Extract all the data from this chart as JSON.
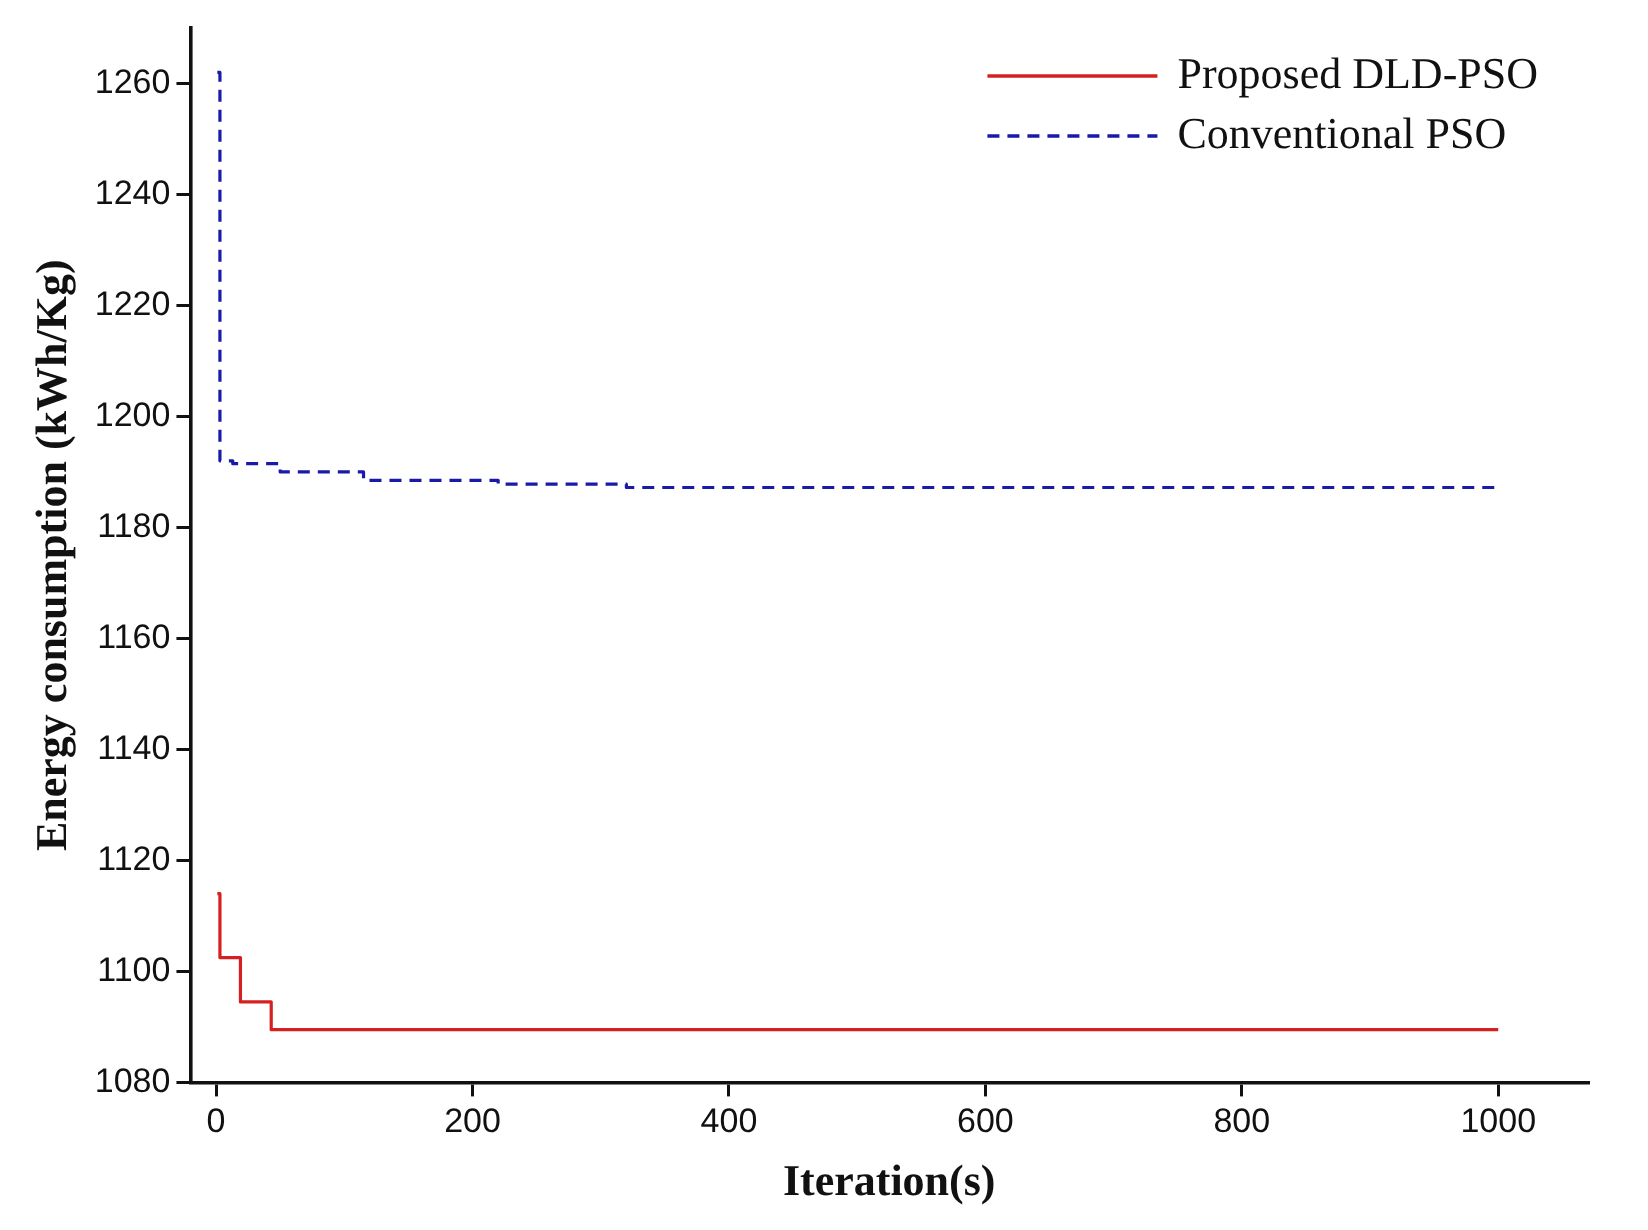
{
  "chart_data": {
    "type": "step",
    "xlabel": "Iteration(s)",
    "ylabel": "Energy consumption (kWh/Kg)",
    "xlim": [
      -20,
      1070
    ],
    "xticks": [
      0,
      200,
      400,
      600,
      800,
      1000
    ],
    "ylim": [
      1080,
      1270
    ],
    "yticks": [
      1080,
      1100,
      1120,
      1140,
      1160,
      1180,
      1200,
      1220,
      1240,
      1260
    ],
    "grid": false,
    "legend": "top right",
    "marker": "none",
    "series": [
      {
        "name": "Proposed DLD-PSO",
        "color": "#d42020",
        "line_style": "solid",
        "x": [
          1,
          3,
          19,
          43,
          1000
        ],
        "values": [
          1114,
          1102.5,
          1094.5,
          1089.5,
          1089.5
        ]
      },
      {
        "name": "Conventional PSO",
        "color": "#1a1aa8",
        "line_style": "dashed",
        "x": [
          1,
          3,
          13,
          50,
          115,
          220,
          320,
          1000
        ],
        "values": [
          1262,
          1192,
          1191.5,
          1190,
          1188.5,
          1187.8,
          1187.2,
          1187.2
        ]
      }
    ]
  }
}
